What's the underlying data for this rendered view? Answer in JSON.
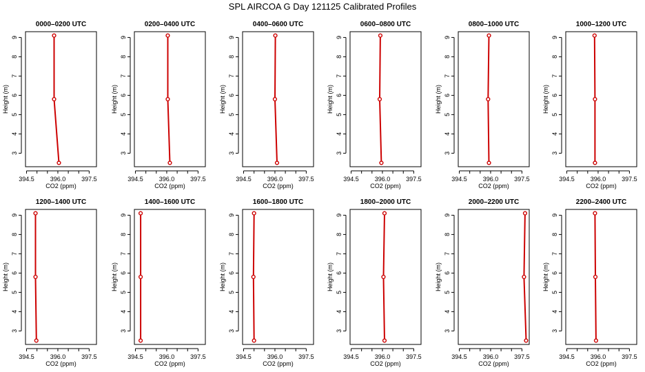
{
  "page_title": "SPL AIRCOA G  Day 121125  Calibrated Profiles",
  "colors": {
    "line": "#cc0000",
    "axis": "#000000",
    "background": "#ffffff"
  },
  "chart_data": [
    {
      "type": "line",
      "title": "0000–0200 UTC",
      "xlabel": "CO2 (ppm)",
      "ylabel": "Height (m)",
      "xlim": [
        394.5,
        397.5
      ],
      "ylim": [
        2.5,
        9.1
      ],
      "x_ticks": [
        "394.5",
        "396.0",
        "397.5"
      ],
      "y_ticks": [
        "3",
        "4",
        "5",
        "6",
        "7",
        "8",
        "9"
      ],
      "series": [
        {
          "x": [
            396.05,
            395.82,
            395.82
          ],
          "y": [
            2.5,
            5.8,
            9.1
          ]
        }
      ]
    },
    {
      "type": "line",
      "title": "0200–0400 UTC",
      "xlabel": "CO2 (ppm)",
      "ylabel": "Height (m)",
      "xlim": [
        394.5,
        397.5
      ],
      "ylim": [
        2.5,
        9.1
      ],
      "x_ticks": [
        "394.5",
        "396.0",
        "397.5"
      ],
      "y_ticks": [
        "3",
        "4",
        "5",
        "6",
        "7",
        "8",
        "9"
      ],
      "series": [
        {
          "x": [
            396.15,
            396.05,
            396.05
          ],
          "y": [
            2.5,
            5.8,
            9.1
          ]
        }
      ]
    },
    {
      "type": "line",
      "title": "0400–0600 UTC",
      "xlabel": "CO2 (ppm)",
      "ylabel": "Height (m)",
      "xlim": [
        394.5,
        397.5
      ],
      "ylim": [
        2.5,
        9.1
      ],
      "x_ticks": [
        "394.5",
        "396.0",
        "397.5"
      ],
      "y_ticks": [
        "3",
        "4",
        "5",
        "6",
        "7",
        "8",
        "9"
      ],
      "series": [
        {
          "x": [
            396.1,
            396.0,
            396.02
          ],
          "y": [
            2.5,
            5.8,
            9.1
          ]
        }
      ]
    },
    {
      "type": "line",
      "title": "0600–0800 UTC",
      "xlabel": "CO2 (ppm)",
      "ylabel": "Height (m)",
      "xlim": [
        394.5,
        397.5
      ],
      "ylim": [
        2.5,
        9.1
      ],
      "x_ticks": [
        "394.5",
        "396.0",
        "397.5"
      ],
      "y_ticks": [
        "3",
        "4",
        "5",
        "6",
        "7",
        "8",
        "9"
      ],
      "series": [
        {
          "x": [
            395.95,
            395.87,
            395.9
          ],
          "y": [
            2.5,
            5.8,
            9.1
          ]
        }
      ]
    },
    {
      "type": "line",
      "title": "0800–1000 UTC",
      "xlabel": "CO2 (ppm)",
      "ylabel": "Height (m)",
      "xlim": [
        394.5,
        397.5
      ],
      "ylim": [
        2.5,
        9.1
      ],
      "x_ticks": [
        "394.5",
        "396.0",
        "397.5"
      ],
      "y_ticks": [
        "3",
        "4",
        "5",
        "6",
        "7",
        "8",
        "9"
      ],
      "series": [
        {
          "x": [
            395.92,
            395.88,
            395.92
          ],
          "y": [
            2.5,
            5.8,
            9.1
          ]
        }
      ]
    },
    {
      "type": "line",
      "title": "1000–1200 UTC",
      "xlabel": "CO2 (ppm)",
      "ylabel": "Height (m)",
      "xlim": [
        394.5,
        397.5
      ],
      "ylim": [
        2.5,
        9.1
      ],
      "x_ticks": [
        "394.5",
        "396.0",
        "397.5"
      ],
      "y_ticks": [
        "3",
        "4",
        "5",
        "6",
        "7",
        "8",
        "9"
      ],
      "series": [
        {
          "x": [
            395.85,
            395.85,
            395.83
          ],
          "y": [
            2.5,
            5.8,
            9.1
          ]
        }
      ]
    },
    {
      "type": "line",
      "title": "1200–1400 UTC",
      "xlabel": "CO2 (ppm)",
      "ylabel": "Height (m)",
      "xlim": [
        394.5,
        397.5
      ],
      "ylim": [
        2.5,
        9.1
      ],
      "x_ticks": [
        "394.5",
        "396.0",
        "397.5"
      ],
      "y_ticks": [
        "3",
        "4",
        "5",
        "6",
        "7",
        "8",
        "9"
      ],
      "series": [
        {
          "x": [
            394.97,
            394.93,
            394.93
          ],
          "y": [
            2.5,
            5.8,
            9.1
          ]
        }
      ]
    },
    {
      "type": "line",
      "title": "1400–1600 UTC",
      "xlabel": "CO2 (ppm)",
      "ylabel": "Height (m)",
      "xlim": [
        394.5,
        397.5
      ],
      "ylim": [
        2.5,
        9.1
      ],
      "x_ticks": [
        "394.5",
        "396.0",
        "397.5"
      ],
      "y_ticks": [
        "3",
        "4",
        "5",
        "6",
        "7",
        "8",
        "9"
      ],
      "series": [
        {
          "x": [
            394.75,
            394.75,
            394.75
          ],
          "y": [
            2.5,
            5.8,
            9.1
          ]
        }
      ]
    },
    {
      "type": "line",
      "title": "1600–1800 UTC",
      "xlabel": "CO2 (ppm)",
      "ylabel": "Height (m)",
      "xlim": [
        394.5,
        397.5
      ],
      "ylim": [
        2.5,
        9.1
      ],
      "x_ticks": [
        "394.5",
        "396.0",
        "397.5"
      ],
      "y_ticks": [
        "3",
        "4",
        "5",
        "6",
        "7",
        "8",
        "9"
      ],
      "series": [
        {
          "x": [
            395.0,
            394.97,
            395.0
          ],
          "y": [
            2.5,
            5.8,
            9.1
          ]
        }
      ]
    },
    {
      "type": "line",
      "title": "1800–2000 UTC",
      "xlabel": "CO2 (ppm)",
      "ylabel": "Height (m)",
      "xlim": [
        394.5,
        397.5
      ],
      "ylim": [
        2.5,
        9.1
      ],
      "x_ticks": [
        "394.5",
        "396.0",
        "397.5"
      ],
      "y_ticks": [
        "3",
        "4",
        "5",
        "6",
        "7",
        "8",
        "9"
      ],
      "series": [
        {
          "x": [
            396.1,
            396.05,
            396.1
          ],
          "y": [
            2.5,
            5.8,
            9.1
          ]
        }
      ]
    },
    {
      "type": "line",
      "title": "2000–2200 UTC",
      "xlabel": "CO2 (ppm)",
      "ylabel": "Height (m)",
      "xlim": [
        394.5,
        397.5
      ],
      "ylim": [
        2.5,
        9.1
      ],
      "x_ticks": [
        "394.5",
        "396.0",
        "397.5"
      ],
      "y_ticks": [
        "3",
        "4",
        "5",
        "6",
        "7",
        "8",
        "9"
      ],
      "series": [
        {
          "x": [
            397.7,
            397.6,
            397.65
          ],
          "y": [
            2.5,
            5.8,
            9.1
          ]
        }
      ]
    },
    {
      "type": "line",
      "title": "2200–2400 UTC",
      "xlabel": "CO2 (ppm)",
      "ylabel": "Height (m)",
      "xlim": [
        394.5,
        397.5
      ],
      "ylim": [
        2.5,
        9.1
      ],
      "x_ticks": [
        "394.5",
        "396.0",
        "397.5"
      ],
      "y_ticks": [
        "3",
        "4",
        "5",
        "6",
        "7",
        "8",
        "9"
      ],
      "series": [
        {
          "x": [
            395.9,
            395.87,
            395.85
          ],
          "y": [
            2.5,
            5.8,
            9.1
          ]
        }
      ]
    }
  ]
}
